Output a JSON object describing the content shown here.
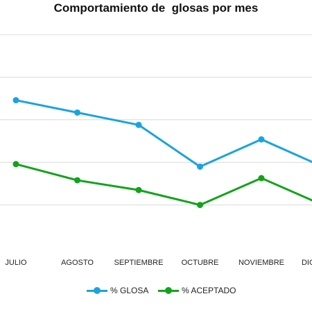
{
  "chart_data": {
    "type": "line",
    "title": "Comportamiento de  glosas por mes",
    "categories": [
      "JULIO",
      "AGOSTO",
      "SEPTIEMBRE",
      "OCTUBRE",
      "NOVIEMBRE",
      "DICIEMBRE"
    ],
    "series": [
      {
        "name": "% GLOSA",
        "color": "#1aa3e0",
        "values": [
          34.6,
          31.7,
          28.8,
          19.0,
          25.4,
          19.0
        ]
      },
      {
        "name": "% ACEPTADO",
        "color": "#13a31a",
        "values": [
          19.6,
          15.8,
          13.5,
          10.0,
          16.3,
          10.0
        ]
      }
    ],
    "ylim": [
      0,
      50
    ],
    "grid": true,
    "legend": "bottom"
  }
}
